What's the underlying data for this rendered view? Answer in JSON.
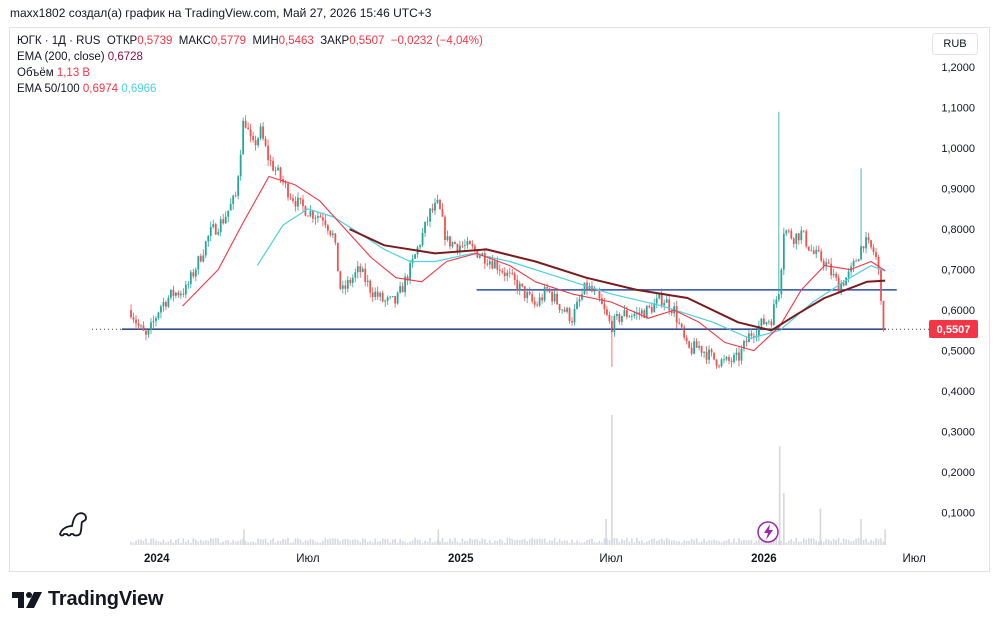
{
  "header": {
    "byline": "maxx1802 создал(а) график на TradingView.com, Май 27, 2026 15:46 UTC+3"
  },
  "legend": {
    "symbol": "ЮГК · 1Д · RUS",
    "open_label": "ОТКР",
    "open": "0,5739",
    "high_label": "МАКС",
    "high": "0,5779",
    "low_label": "МИН",
    "low": "0,5463",
    "close_label": "ЗАКР",
    "close": "0,5507",
    "change": "−0,0232 (−4,04%)",
    "ema200_label": "EMA (200, close)",
    "ema200_value": "0,6728",
    "volume_label": "Объём",
    "volume_value": "1,13 B",
    "ema50_100_label": "EMA 50/100",
    "ema50_value": "0,6974",
    "ema100_value": "0,6966"
  },
  "currency_button": "RUB",
  "last_price_label": "0,5507",
  "brand": "TradingView",
  "colors": {
    "up": "#26a69a",
    "down": "#ef5350",
    "ema50": "#f23645",
    "ema100": "#4dd0e1",
    "ema200": "#7b1c1c",
    "hline": "#2a4fb0",
    "volume": "#d5d8df",
    "price_tag": "#f23645"
  },
  "chart_data": {
    "type": "candlestick",
    "symbol": "ЮГК",
    "interval": "1Д",
    "y_ticks": [
      "0,1000",
      "0,2000",
      "0,3000",
      "0,4000",
      "0,5000",
      "0,6000",
      "0,7000",
      "0,8000",
      "0,9000",
      "1,0000",
      "1,1000",
      "1,2000"
    ],
    "y_range": [
      0.02,
      1.23
    ],
    "x_ticks": [
      {
        "label": "2024",
        "date": "2024-01-01"
      },
      {
        "label": "Июл",
        "date": "2024-07-01"
      },
      {
        "label": "2025",
        "date": "2025-01-01"
      },
      {
        "label": "Июл",
        "date": "2025-07-01"
      },
      {
        "label": "2026",
        "date": "2026-01-01"
      },
      {
        "label": "Июл",
        "date": "2026-07-01"
      }
    ],
    "x_range": [
      "2023-10-15",
      "2026-07-20"
    ],
    "price_path": [
      [
        "2023-12-01",
        0.6
      ],
      [
        "2023-12-10",
        0.56
      ],
      [
        "2023-12-20",
        0.53
      ],
      [
        "2024-01-05",
        0.61
      ],
      [
        "2024-01-20",
        0.64
      ],
      [
        "2024-02-05",
        0.65
      ],
      [
        "2024-02-20",
        0.72
      ],
      [
        "2024-03-05",
        0.79
      ],
      [
        "2024-03-20",
        0.82
      ],
      [
        "2024-04-05",
        0.88
      ],
      [
        "2024-04-15",
        1.08
      ],
      [
        "2024-04-25",
        1.0
      ],
      [
        "2024-05-05",
        1.04
      ],
      [
        "2024-05-15",
        0.97
      ],
      [
        "2024-05-25",
        0.94
      ],
      [
        "2024-06-05",
        0.9
      ],
      [
        "2024-06-20",
        0.86
      ],
      [
        "2024-07-05",
        0.84
      ],
      [
        "2024-07-20",
        0.83
      ],
      [
        "2024-08-01",
        0.78
      ],
      [
        "2024-08-10",
        0.64
      ],
      [
        "2024-08-20",
        0.67
      ],
      [
        "2024-09-01",
        0.7
      ],
      [
        "2024-09-15",
        0.65
      ],
      [
        "2024-10-01",
        0.62
      ],
      [
        "2024-10-15",
        0.62
      ],
      [
        "2024-11-01",
        0.7
      ],
      [
        "2024-11-15",
        0.78
      ],
      [
        "2024-11-25",
        0.84
      ],
      [
        "2024-12-05",
        0.86
      ],
      [
        "2024-12-15",
        0.77
      ],
      [
        "2025-01-01",
        0.76
      ],
      [
        "2025-01-15",
        0.75
      ],
      [
        "2025-02-01",
        0.73
      ],
      [
        "2025-02-15",
        0.71
      ],
      [
        "2025-03-01",
        0.68
      ],
      [
        "2025-03-15",
        0.65
      ],
      [
        "2025-04-01",
        0.61
      ],
      [
        "2025-04-15",
        0.65
      ],
      [
        "2025-05-01",
        0.61
      ],
      [
        "2025-05-15",
        0.58
      ],
      [
        "2025-06-01",
        0.66
      ],
      [
        "2025-06-15",
        0.63
      ],
      [
        "2025-07-01",
        0.56
      ],
      [
        "2025-07-15",
        0.59
      ],
      [
        "2025-08-01",
        0.59
      ],
      [
        "2025-08-15",
        0.6
      ],
      [
        "2025-09-01",
        0.63
      ],
      [
        "2025-09-15",
        0.6
      ],
      [
        "2025-10-01",
        0.5
      ],
      [
        "2025-10-15",
        0.51
      ],
      [
        "2025-11-01",
        0.48
      ],
      [
        "2025-11-15",
        0.47
      ],
      [
        "2025-12-01",
        0.48
      ],
      [
        "2025-12-15",
        0.54
      ],
      [
        "2026-01-01",
        0.57
      ],
      [
        "2026-01-10",
        0.58
      ],
      [
        "2026-01-20",
        0.66
      ],
      [
        "2026-01-25",
        0.8
      ],
      [
        "2026-02-05",
        0.78
      ],
      [
        "2026-02-15",
        0.79
      ],
      [
        "2026-03-01",
        0.74
      ],
      [
        "2026-03-15",
        0.72
      ],
      [
        "2026-04-01",
        0.66
      ],
      [
        "2026-04-15",
        0.69
      ],
      [
        "2026-05-01",
        0.77
      ],
      [
        "2026-05-15",
        0.74
      ],
      [
        "2026-05-20",
        0.68
      ],
      [
        "2026-05-24",
        0.6
      ],
      [
        "2026-05-27",
        0.5507
      ]
    ],
    "spikes": [
      {
        "date": "2025-07-02",
        "low": 0.46
      },
      {
        "date": "2026-01-20",
        "high": 1.09
      },
      {
        "date": "2026-04-28",
        "high": 0.95
      }
    ],
    "ema200": [
      [
        "2024-08-20",
        0.8
      ],
      [
        "2024-10-01",
        0.76
      ],
      [
        "2024-12-01",
        0.74
      ],
      [
        "2025-02-01",
        0.75
      ],
      [
        "2025-04-01",
        0.72
      ],
      [
        "2025-06-01",
        0.68
      ],
      [
        "2025-08-01",
        0.65
      ],
      [
        "2025-10-01",
        0.63
      ],
      [
        "2025-12-01",
        0.57
      ],
      [
        "2026-01-10",
        0.55
      ],
      [
        "2026-02-10",
        0.59
      ],
      [
        "2026-03-15",
        0.63
      ],
      [
        "2026-05-05",
        0.67
      ],
      [
        "2026-05-27",
        0.6728
      ]
    ],
    "ema50": [
      [
        "2024-02-01",
        0.61
      ],
      [
        "2024-03-15",
        0.7
      ],
      [
        "2024-04-15",
        0.82
      ],
      [
        "2024-05-15",
        0.93
      ],
      [
        "2024-06-15",
        0.91
      ],
      [
        "2024-07-15",
        0.87
      ],
      [
        "2024-08-15",
        0.8
      ],
      [
        "2024-09-15",
        0.73
      ],
      [
        "2024-10-15",
        0.68
      ],
      [
        "2024-11-15",
        0.67
      ],
      [
        "2024-12-15",
        0.72
      ],
      [
        "2025-01-20",
        0.74
      ],
      [
        "2025-03-01",
        0.71
      ],
      [
        "2025-04-01",
        0.67
      ],
      [
        "2025-05-15",
        0.64
      ],
      [
        "2025-07-01",
        0.62
      ],
      [
        "2025-08-15",
        0.58
      ],
      [
        "2025-09-15",
        0.6
      ],
      [
        "2025-10-15",
        0.57
      ],
      [
        "2025-11-15",
        0.52
      ],
      [
        "2025-12-20",
        0.5
      ],
      [
        "2026-01-20",
        0.56
      ],
      [
        "2026-02-15",
        0.65
      ],
      [
        "2026-03-15",
        0.71
      ],
      [
        "2026-04-15",
        0.7
      ],
      [
        "2026-05-10",
        0.72
      ],
      [
        "2026-05-27",
        0.6974
      ]
    ],
    "ema100": [
      [
        "2024-05-01",
        0.71
      ],
      [
        "2024-06-01",
        0.81
      ],
      [
        "2024-07-01",
        0.85
      ],
      [
        "2024-08-01",
        0.83
      ],
      [
        "2024-09-01",
        0.79
      ],
      [
        "2024-10-01",
        0.75
      ],
      [
        "2024-11-01",
        0.72
      ],
      [
        "2024-12-01",
        0.72
      ],
      [
        "2025-01-15",
        0.74
      ],
      [
        "2025-03-01",
        0.72
      ],
      [
        "2025-05-01",
        0.68
      ],
      [
        "2025-07-01",
        0.64
      ],
      [
        "2025-09-01",
        0.61
      ],
      [
        "2025-11-01",
        0.57
      ],
      [
        "2025-12-15",
        0.53
      ],
      [
        "2026-01-20",
        0.55
      ],
      [
        "2026-03-01",
        0.62
      ],
      [
        "2026-04-15",
        0.68
      ],
      [
        "2026-05-10",
        0.71
      ],
      [
        "2026-05-27",
        0.6966
      ]
    ],
    "horizontal_lines": [
      {
        "price": 0.553,
        "from": "2023-11-20",
        "to": "2026-05-28"
      },
      {
        "price": 0.65,
        "from": "2025-01-20",
        "to": "2026-06-10"
      }
    ],
    "volume_spikes": [
      [
        "2025-07-02",
        0.25
      ],
      [
        "2025-06-25",
        0.05
      ],
      [
        "2026-01-20",
        0.19
      ],
      [
        "2026-01-25",
        0.1
      ],
      [
        "2026-03-10",
        0.07
      ],
      [
        "2026-04-28",
        0.05
      ],
      [
        "2026-05-27",
        0.03
      ],
      [
        "2024-04-15",
        0.03
      ],
      [
        "2024-12-05",
        0.03
      ]
    ],
    "last_price": 0.5507
  }
}
